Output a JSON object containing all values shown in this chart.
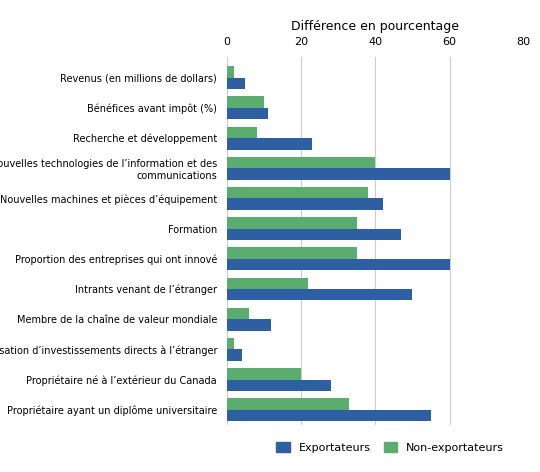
{
  "title": "Différence en pourcentage",
  "categories": [
    "Revenus (en millions de dollars)",
    "Bénéfices avant impôt (%)",
    "Recherche et développement",
    "Nouvelles technologies de l’information et des\ncommunications",
    "Nouvelles machines et pièces d’équipement",
    "Formation",
    "Proportion des entreprises qui ont innové",
    "Intrants venant de l’étranger",
    "Membre de la chaîne de valeur mondiale",
    "réalisation d’investissements directs à l’étranger",
    "Propriétaire né à l’extérieur du Canada",
    "Propriétaire ayant un diplôme universitaire"
  ],
  "exportateurs": [
    5,
    11,
    23,
    60,
    42,
    47,
    60,
    50,
    12,
    4,
    28,
    55
  ],
  "non_exportateurs": [
    2,
    10,
    8,
    40,
    38,
    35,
    35,
    22,
    6,
    2,
    20,
    33
  ],
  "color_exportateurs": "#2E5FA3",
  "color_non_exportateurs": "#5BAD6F",
  "xlim": [
    0,
    80
  ],
  "xticks": [
    0,
    20,
    40,
    60,
    80
  ],
  "legend_exportateurs": "Exportateurs",
  "legend_non_exportateurs": "Non-exportateurs",
  "background_color": "#FFFFFF",
  "grid_color": "#CCCCCC"
}
